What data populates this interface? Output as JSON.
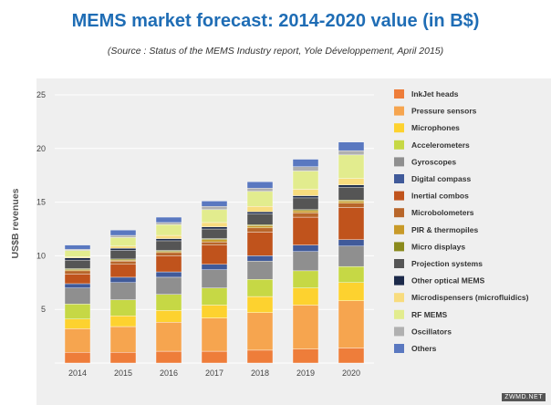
{
  "chart_data": {
    "type": "bar",
    "stacked": true,
    "title": "MEMS market forecast: 2014-2020 value (in B$)",
    "subtitle": "(Source : Status of the MEMS Industry report, Yole Développement, April 2015)",
    "xlabel": "",
    "ylabel": "US$B revenues",
    "ylim": [
      0,
      25
    ],
    "yticks": [
      0,
      5,
      10,
      15,
      20,
      25
    ],
    "ytick_labels": [
      "",
      "5",
      "10",
      "15",
      "20",
      "25"
    ],
    "grid": true,
    "legend_position": "right",
    "categories": [
      "2014",
      "2015",
      "2016",
      "2017",
      "2018",
      "2019",
      "2020"
    ],
    "series": [
      {
        "name": "InkJet heads",
        "color": "#ee7d3a",
        "values": [
          1.0,
          1.0,
          1.1,
          1.1,
          1.2,
          1.3,
          1.4
        ]
      },
      {
        "name": "Pressure sensors",
        "color": "#f6a54f",
        "values": [
          2.2,
          2.4,
          2.7,
          3.1,
          3.5,
          4.1,
          4.4
        ]
      },
      {
        "name": "Microphones",
        "color": "#fdd22f",
        "values": [
          0.9,
          1.0,
          1.1,
          1.2,
          1.5,
          1.6,
          1.7
        ]
      },
      {
        "name": "Accelerometers",
        "color": "#c6d845",
        "values": [
          1.4,
          1.5,
          1.5,
          1.6,
          1.6,
          1.6,
          1.5
        ]
      },
      {
        "name": "Gyroscopes",
        "color": "#8f8f8f",
        "values": [
          1.5,
          1.6,
          1.6,
          1.7,
          1.7,
          1.8,
          1.9
        ]
      },
      {
        "name": "Digital compass",
        "color": "#405a9a",
        "values": [
          0.4,
          0.5,
          0.5,
          0.5,
          0.5,
          0.6,
          0.6
        ]
      },
      {
        "name": "Inertial combos",
        "color": "#c0531c",
        "values": [
          0.9,
          1.2,
          1.5,
          1.8,
          2.2,
          2.6,
          3.0
        ]
      },
      {
        "name": "Microbolometers",
        "color": "#b8662a",
        "values": [
          0.3,
          0.3,
          0.3,
          0.3,
          0.4,
          0.4,
          0.4
        ]
      },
      {
        "name": "PIR & thermopiles",
        "color": "#c89a28",
        "values": [
          0.1,
          0.1,
          0.1,
          0.2,
          0.2,
          0.2,
          0.2
        ]
      },
      {
        "name": "Micro displays",
        "color": "#8a8a1c",
        "values": [
          0.1,
          0.1,
          0.1,
          0.1,
          0.1,
          0.1,
          0.1
        ]
      },
      {
        "name": "Projection systems",
        "color": "#555555",
        "values": [
          0.8,
          0.8,
          0.9,
          0.9,
          1.0,
          1.1,
          1.2
        ]
      },
      {
        "name": "Other optical MEMS",
        "color": "#1c2a4a",
        "values": [
          0.2,
          0.2,
          0.2,
          0.2,
          0.2,
          0.2,
          0.2
        ]
      },
      {
        "name": "Microdispensers (microfluidics)",
        "color": "#f8dc7e",
        "values": [
          0.1,
          0.2,
          0.3,
          0.4,
          0.5,
          0.6,
          0.6
        ]
      },
      {
        "name": "RF MEMS",
        "color": "#e2ec8e",
        "values": [
          0.6,
          0.8,
          1.0,
          1.2,
          1.4,
          1.7,
          2.2
        ]
      },
      {
        "name": "Oscillators",
        "color": "#b0b0b0",
        "values": [
          0.1,
          0.2,
          0.2,
          0.3,
          0.3,
          0.4,
          0.4
        ]
      },
      {
        "name": "Others",
        "color": "#5a78c0",
        "values": [
          0.4,
          0.5,
          0.5,
          0.5,
          0.6,
          0.7,
          0.8
        ]
      }
    ]
  },
  "watermark": "ZWMD.NET"
}
